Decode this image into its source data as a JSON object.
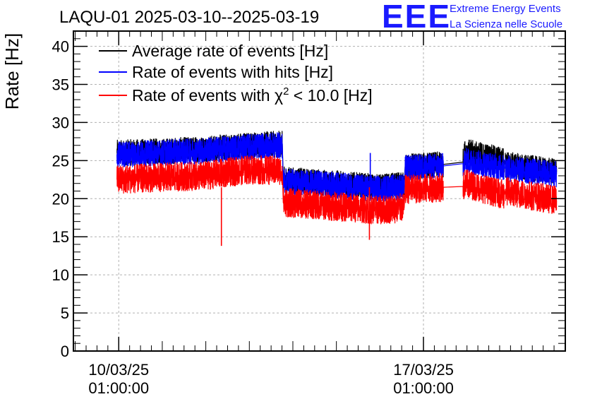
{
  "chart_data": {
    "type": "line",
    "title": "LAQU-01 2025-03-10--2025-03-19",
    "ylabel": "Rate [Hz]",
    "xlabel": "",
    "ylim": [
      0,
      42
    ],
    "yticks": [
      0,
      5,
      10,
      15,
      20,
      25,
      30,
      35,
      40
    ],
    "xticks": [
      {
        "line1": "10/03/25",
        "line2": "01:00:00",
        "day": 10.0417
      },
      {
        "line1": "17/03/25",
        "line2": "01:00:00",
        "day": 17.0417
      }
    ],
    "xlim_day": [
      9.0,
      20.3
    ],
    "grid": true,
    "legend_position": "top-left",
    "series": [
      {
        "name": "Average rate of events [Hz]",
        "color": "#000000",
        "points": [
          [
            10.0,
            26.0
          ],
          [
            11.0,
            26.2
          ],
          [
            12.0,
            26.5
          ],
          [
            13.0,
            27.0
          ],
          [
            13.8,
            27.2
          ],
          [
            13.82,
            22.5
          ],
          [
            15.0,
            22.0
          ],
          [
            16.0,
            21.5
          ],
          [
            16.6,
            21.8
          ],
          [
            16.62,
            24.2
          ],
          [
            17.5,
            24.5
          ],
          [
            17.95,
            24.8
          ],
          [
            18.0,
            26.2
          ],
          [
            18.9,
            25.0
          ],
          [
            18.92,
            24.5
          ],
          [
            20.1,
            23.5
          ]
        ]
      },
      {
        "name": "Rate of events with hits [Hz]",
        "color": "#0000ff",
        "points": [
          [
            10.0,
            25.8
          ],
          [
            11.0,
            26.0
          ],
          [
            12.0,
            26.3
          ],
          [
            13.0,
            26.8
          ],
          [
            13.8,
            27.0
          ],
          [
            13.82,
            22.3
          ],
          [
            15.0,
            21.8
          ],
          [
            16.0,
            21.3
          ],
          [
            16.6,
            21.6
          ],
          [
            16.62,
            24.0
          ],
          [
            17.5,
            24.3
          ],
          [
            17.95,
            24.6
          ],
          [
            18.0,
            25.0
          ],
          [
            18.9,
            24.0
          ],
          [
            18.92,
            24.0
          ],
          [
            20.1,
            23.2
          ]
        ]
      },
      {
        "name": "Rate of events with χ² < 10.0 [Hz]",
        "name_parts": [
          "Rate of events with χ",
          "2",
          " < 10.0 [Hz]"
        ],
        "color": "#ff0000",
        "points": [
          [
            10.0,
            22.5
          ],
          [
            11.0,
            22.8
          ],
          [
            12.0,
            23.0
          ],
          [
            13.0,
            23.8
          ],
          [
            13.8,
            23.7
          ],
          [
            13.82,
            19.5
          ],
          [
            15.0,
            19.0
          ],
          [
            16.0,
            18.5
          ],
          [
            16.6,
            18.8
          ],
          [
            16.62,
            21.2
          ],
          [
            17.5,
            21.5
          ],
          [
            17.95,
            21.6
          ],
          [
            18.0,
            22.0
          ],
          [
            18.9,
            20.5
          ],
          [
            18.92,
            21.0
          ],
          [
            20.1,
            19.8
          ]
        ]
      }
    ],
    "spikes": [
      {
        "day": 12.4,
        "color": "#ff0000",
        "to": 13.8
      },
      {
        "day": 15.8,
        "color": "#ff0000",
        "to": 14.6
      },
      {
        "day": 15.82,
        "color": "#0000ff",
        "to": 26.0
      }
    ]
  },
  "logo": {
    "mark": "EEE",
    "line1": "Extreme Energy Events",
    "line2": "La Scienza nelle Scuole",
    "color": "#1a1aff"
  }
}
